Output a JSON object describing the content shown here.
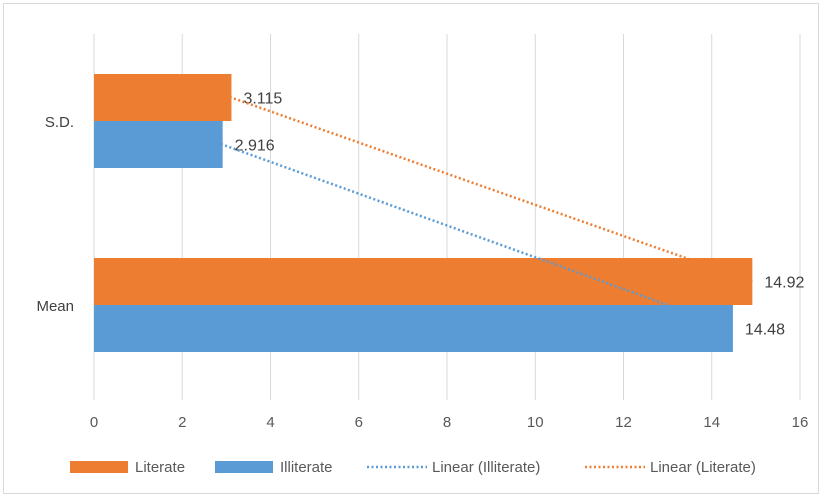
{
  "chart_data": {
    "type": "bar",
    "orientation": "horizontal",
    "categories": [
      "S.D.",
      "Mean"
    ],
    "series": [
      {
        "name": "Literate",
        "values": [
          3.115,
          14.92
        ],
        "labels": [
          "3.115",
          "14.92"
        ],
        "color": "#ED7D31"
      },
      {
        "name": "Illiterate",
        "values": [
          2.916,
          14.48
        ],
        "labels": [
          "2.916",
          "14.48"
        ],
        "color": "#5B9BD5"
      }
    ],
    "trendlines": [
      {
        "name": "Linear (Illiterate)",
        "series": "Illiterate",
        "color": "#5B9BD5",
        "style": "dotted"
      },
      {
        "name": "Linear (Literate)",
        "series": "Literate",
        "color": "#ED7D31",
        "style": "dotted"
      }
    ],
    "xlim": [
      0,
      16
    ],
    "xticks": [
      "0",
      "2",
      "4",
      "6",
      "8",
      "10",
      "12",
      "14",
      "16"
    ],
    "grid": true,
    "legend_position": "bottom",
    "title": "",
    "xlabel": "",
    "ylabel": ""
  }
}
